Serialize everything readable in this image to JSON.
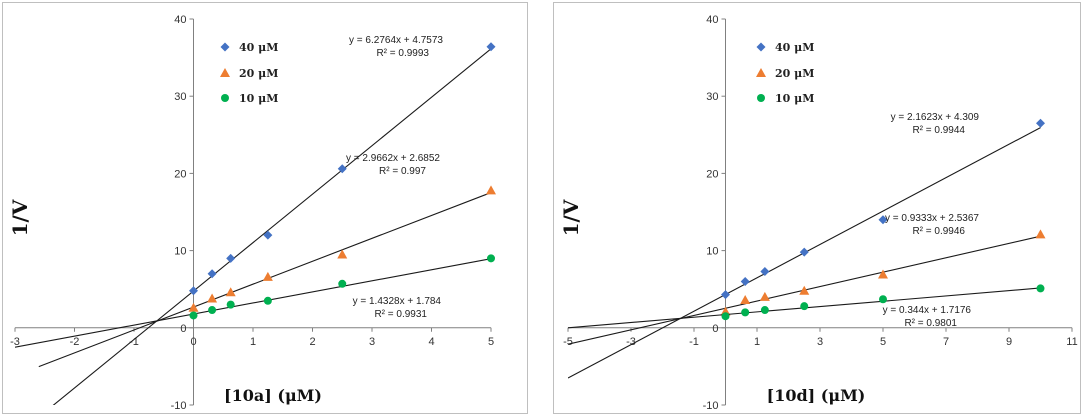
{
  "chart_data": [
    {
      "type": "scatter",
      "xlabel": "[10a] (μM)",
      "ylabel": "1/V",
      "xlim": [
        -3,
        5
      ],
      "ylim": [
        -10,
        40
      ],
      "xticks": [
        -3,
        -2,
        -1,
        0,
        1,
        2,
        3,
        4,
        5
      ],
      "yticks": [
        -10,
        0,
        10,
        20,
        30,
        40
      ],
      "x": [
        0,
        0.3125,
        0.625,
        1.25,
        2.5,
        5
      ],
      "legend_position": "top-left",
      "series": [
        {
          "name": "40 μM",
          "marker": "diamond",
          "color": "#4472c4",
          "values": [
            4.8,
            7.0,
            9.0,
            12.0,
            20.6,
            36.4
          ],
          "fit": {
            "slope": 6.2764,
            "intercept": 4.7573,
            "x_range": [
              -2.4,
              5
            ],
            "equation": "y = 6.2764x + 4.7573",
            "r2": "R² = 0.9993"
          }
        },
        {
          "name": "20 μM",
          "marker": "triangle",
          "color": "#ed7d31",
          "values": [
            2.6,
            3.8,
            4.6,
            6.6,
            9.5,
            17.8
          ],
          "fit": {
            "slope": 2.9662,
            "intercept": 2.6852,
            "x_range": [
              -2.6,
              5
            ],
            "equation": "y = 2.9662x + 2.6852",
            "r2": "R² = 0.997"
          }
        },
        {
          "name": "10 μM",
          "marker": "circle",
          "color": "#00b050",
          "values": [
            1.6,
            2.3,
            3.0,
            3.5,
            5.7,
            9.0
          ],
          "fit": {
            "slope": 1.4328,
            "intercept": 1.784,
            "x_range": [
              -3,
              5
            ],
            "equation": "y = 1.4328x + 1.784",
            "r2": "R² = 0.9931"
          }
        }
      ]
    },
    {
      "type": "scatter",
      "xlabel": "[10d] (μM)",
      "ylabel": "1/V",
      "xlim": [
        -5,
        11
      ],
      "ylim": [
        -10,
        40
      ],
      "xticks": [
        -5,
        -3,
        -1,
        1,
        3,
        5,
        7,
        9,
        11
      ],
      "yticks": [
        -10,
        0,
        10,
        20,
        30,
        40
      ],
      "x": [
        0,
        0.625,
        1.25,
        2.5,
        5,
        10
      ],
      "legend_position": "top-left",
      "series": [
        {
          "name": "40 μM",
          "marker": "diamond",
          "color": "#4472c4",
          "values": [
            4.3,
            6.0,
            7.3,
            9.8,
            14.0,
            26.5
          ],
          "fit": {
            "slope": 2.1623,
            "intercept": 4.309,
            "x_range": [
              -5,
              10
            ],
            "equation": "y = 2.1623x + 4.309",
            "r2": "R² = 0.9944"
          }
        },
        {
          "name": "20 μM",
          "marker": "triangle",
          "color": "#ed7d31",
          "values": [
            2.1,
            3.6,
            4.0,
            4.8,
            6.9,
            12.1
          ],
          "fit": {
            "slope": 0.9333,
            "intercept": 2.5367,
            "x_range": [
              -5,
              10
            ],
            "equation": "y = 0.9333x + 2.5367",
            "r2": "R² = 0.9946"
          }
        },
        {
          "name": "10 μM",
          "marker": "circle",
          "color": "#00b050",
          "values": [
            1.5,
            2.0,
            2.3,
            2.8,
            3.7,
            5.1
          ],
          "fit": {
            "slope": 0.344,
            "intercept": 1.7176,
            "x_range": [
              -5,
              10
            ],
            "equation": "y = 0.344x + 1.7176",
            "r2": "R² = 0.9801"
          }
        }
      ]
    }
  ]
}
